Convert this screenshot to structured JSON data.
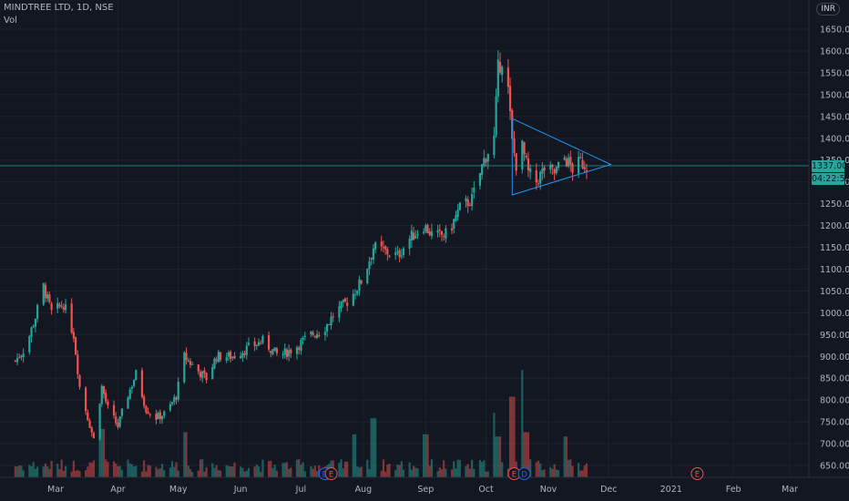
{
  "header": {
    "symbol": "MINDTREE LTD, 1D, NSE",
    "volume_label": "Vol",
    "currency_badge": "INR"
  },
  "price_tag": {
    "last_price": "1337.00",
    "countdown": "04:22:52",
    "color": "#26a69a"
  },
  "event_markers": [
    {
      "label": "D",
      "date": "2020-07-13",
      "color": "#2962ff"
    },
    {
      "label": "E",
      "date": "2020-07-16",
      "color": "#ef5350"
    },
    {
      "label": "E",
      "date": "2020-10-15",
      "color": "#ef5350"
    },
    {
      "label": "D",
      "date": "2020-10-20",
      "color": "#2962ff"
    },
    {
      "label": "E",
      "date": "2021-01-14",
      "color": "#ef5350"
    }
  ],
  "chart_data": {
    "type": "candlestick",
    "x_ticks": [
      "Mar",
      "Apr",
      "May",
      "Jun",
      "Jul",
      "Aug",
      "Sep",
      "Oct",
      "Nov",
      "Dec",
      "2021",
      "Feb",
      "Mar"
    ],
    "x_tick_dates": [
      "2020-03-01",
      "2020-04-01",
      "2020-05-01",
      "2020-06-01",
      "2020-07-01",
      "2020-08-01",
      "2020-09-01",
      "2020-10-01",
      "2020-11-01",
      "2020-12-01",
      "2021-01-01",
      "2021-02-01",
      "2021-03-01"
    ],
    "y_ticks": [
      650,
      700,
      750,
      800,
      850,
      900,
      950,
      1000,
      1050,
      1100,
      1150,
      1200,
      1250,
      1300,
      1350,
      1400,
      1450,
      1500,
      1550,
      1600,
      1650
    ],
    "y_range": [
      630,
      1700
    ],
    "up_color": "#26a69a",
    "down_color": "#ef5350",
    "price_path": [
      [
        "2020-02-10",
        890
      ],
      [
        "2020-02-15",
        920
      ],
      [
        "2020-02-20",
        990
      ],
      [
        "2020-02-24",
        1060
      ],
      [
        "2020-02-28",
        1000
      ],
      [
        "2020-03-05",
        1020
      ],
      [
        "2020-03-10",
        950
      ],
      [
        "2020-03-13",
        830
      ],
      [
        "2020-03-17",
        760
      ],
      [
        "2020-03-20",
        710
      ],
      [
        "2020-03-24",
        830
      ],
      [
        "2020-03-27",
        780
      ],
      [
        "2020-04-01",
        740
      ],
      [
        "2020-04-05",
        800
      ],
      [
        "2020-04-10",
        860
      ],
      [
        "2020-04-15",
        780
      ],
      [
        "2020-04-20",
        760
      ],
      [
        "2020-04-25",
        770
      ],
      [
        "2020-04-30",
        810
      ],
      [
        "2020-05-04",
        900
      ],
      [
        "2020-05-10",
        870
      ],
      [
        "2020-05-15",
        850
      ],
      [
        "2020-05-20",
        900
      ],
      [
        "2020-05-28",
        900
      ],
      [
        "2020-06-05",
        920
      ],
      [
        "2020-06-12",
        935
      ],
      [
        "2020-06-20",
        900
      ],
      [
        "2020-06-28",
        920
      ],
      [
        "2020-07-06",
        950
      ],
      [
        "2020-07-12",
        960
      ],
      [
        "2020-07-18",
        1000
      ],
      [
        "2020-07-25",
        1030
      ],
      [
        "2020-08-01",
        1080
      ],
      [
        "2020-08-06",
        1150
      ],
      [
        "2020-08-12",
        1140
      ],
      [
        "2020-08-18",
        1130
      ],
      [
        "2020-08-24",
        1170
      ],
      [
        "2020-08-31",
        1200
      ],
      [
        "2020-09-05",
        1175
      ],
      [
        "2020-09-12",
        1180
      ],
      [
        "2020-09-18",
        1240
      ],
      [
        "2020-09-24",
        1260
      ],
      [
        "2020-09-30",
        1350
      ],
      [
        "2020-10-05",
        1400
      ],
      [
        "2020-10-07",
        1560
      ],
      [
        "2020-10-09",
        1580
      ],
      [
        "2020-10-12",
        1510
      ],
      [
        "2020-10-14",
        1390
      ],
      [
        "2020-10-16",
        1340
      ],
      [
        "2020-10-19",
        1380
      ],
      [
        "2020-10-22",
        1320
      ],
      [
        "2020-10-26",
        1300
      ],
      [
        "2020-10-30",
        1330
      ],
      [
        "2020-11-04",
        1320
      ],
      [
        "2020-11-09",
        1355
      ],
      [
        "2020-11-13",
        1330
      ],
      [
        "2020-11-17",
        1345
      ],
      [
        "2020-11-20",
        1337
      ]
    ],
    "triangle_pattern": {
      "color": "#2196f3",
      "points": [
        [
          "2020-10-14",
          1445
        ],
        [
          "2020-12-02",
          1340
        ],
        [
          "2020-10-14",
          1270
        ]
      ]
    },
    "last_price_line": 1337.0,
    "volume_spikes": [
      [
        "2020-03-24",
        0.45
      ],
      [
        "2020-05-04",
        0.42
      ],
      [
        "2020-07-27",
        0.4
      ],
      [
        "2020-08-06",
        0.55
      ],
      [
        "2020-09-01",
        0.4
      ],
      [
        "2020-10-05",
        0.6
      ],
      [
        "2020-10-07",
        0.38
      ],
      [
        "2020-10-14",
        0.75
      ],
      [
        "2020-10-19",
        1.0
      ],
      [
        "2020-10-21",
        0.42
      ],
      [
        "2020-11-09",
        0.38
      ]
    ]
  }
}
